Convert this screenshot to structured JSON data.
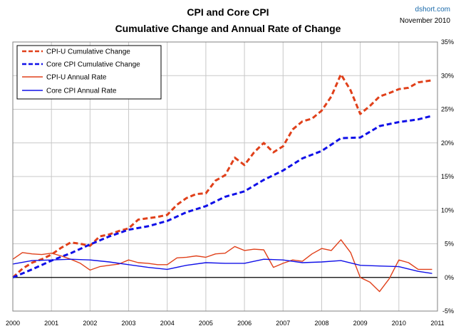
{
  "header": {
    "title_line1": "CPI and Core CPI",
    "title_line2": "Cumulative Change and Annual Rate of Change",
    "source": "dshort.com",
    "date": "November 2010"
  },
  "colors": {
    "cpi_u": "#e0401a",
    "core_cpi": "#1010e8",
    "grid": "#c8c8c8",
    "zero_line": "#000000"
  },
  "chart_data": {
    "type": "line",
    "title": "CPI and Core CPI — Cumulative Change and Annual Rate of Change",
    "x_ticks": [
      "2000",
      "2001",
      "2002",
      "2003",
      "2004",
      "2005",
      "2006",
      "2007",
      "2008",
      "2009",
      "2010",
      "2011"
    ],
    "y_ticks": [
      "35%",
      "30%",
      "25%",
      "20%",
      "15%",
      "10%",
      "5%",
      "0%",
      "-5%"
    ],
    "xlim": [
      2000,
      2011
    ],
    "ylim": [
      -5,
      35
    ],
    "y_axis_side": "right",
    "grid": true,
    "legend_position": "top-left",
    "series": [
      {
        "name": "CPI-U Cumulative Change",
        "style": "dashed",
        "color": "#e0401a",
        "points": [
          [
            2000.0,
            0.0
          ],
          [
            2000.25,
            1.3
          ],
          [
            2000.5,
            2.2
          ],
          [
            2000.75,
            2.7
          ],
          [
            2001.0,
            3.4
          ],
          [
            2001.25,
            4.4
          ],
          [
            2001.5,
            5.2
          ],
          [
            2001.75,
            5.0
          ],
          [
            2002.0,
            4.7
          ],
          [
            2002.25,
            6.1
          ],
          [
            2002.5,
            6.4
          ],
          [
            2002.75,
            6.9
          ],
          [
            2003.0,
            7.3
          ],
          [
            2003.25,
            8.6
          ],
          [
            2003.5,
            8.8
          ],
          [
            2003.75,
            9.0
          ],
          [
            2004.0,
            9.3
          ],
          [
            2004.25,
            10.8
          ],
          [
            2004.5,
            11.8
          ],
          [
            2004.75,
            12.4
          ],
          [
            2005.0,
            12.5
          ],
          [
            2005.25,
            14.4
          ],
          [
            2005.5,
            15.2
          ],
          [
            2005.75,
            17.8
          ],
          [
            2006.0,
            16.7
          ],
          [
            2006.25,
            18.6
          ],
          [
            2006.5,
            20.0
          ],
          [
            2006.75,
            18.6
          ],
          [
            2007.0,
            19.5
          ],
          [
            2007.25,
            22.0
          ],
          [
            2007.5,
            23.2
          ],
          [
            2007.75,
            23.6
          ],
          [
            2008.0,
            24.8
          ],
          [
            2008.25,
            26.9
          ],
          [
            2008.5,
            30.2
          ],
          [
            2008.75,
            27.8
          ],
          [
            2009.0,
            24.3
          ],
          [
            2009.25,
            25.5
          ],
          [
            2009.5,
            26.9
          ],
          [
            2009.75,
            27.4
          ],
          [
            2010.0,
            28.0
          ],
          [
            2010.25,
            28.2
          ],
          [
            2010.5,
            29.0
          ],
          [
            2010.85,
            29.3
          ]
        ]
      },
      {
        "name": "Core CPI Cumulative Change",
        "style": "dashed",
        "color": "#1010e8",
        "points": [
          [
            2000.0,
            0.0
          ],
          [
            2000.5,
            1.2
          ],
          [
            2001.0,
            2.5
          ],
          [
            2001.5,
            3.6
          ],
          [
            2002.0,
            4.9
          ],
          [
            2002.5,
            6.1
          ],
          [
            2003.0,
            7.1
          ],
          [
            2003.5,
            7.6
          ],
          [
            2004.0,
            8.4
          ],
          [
            2004.5,
            9.7
          ],
          [
            2005.0,
            10.6
          ],
          [
            2005.5,
            12.0
          ],
          [
            2006.0,
            12.8
          ],
          [
            2006.5,
            14.5
          ],
          [
            2007.0,
            15.9
          ],
          [
            2007.5,
            17.7
          ],
          [
            2008.0,
            18.8
          ],
          [
            2008.5,
            20.7
          ],
          [
            2009.0,
            20.8
          ],
          [
            2009.5,
            22.5
          ],
          [
            2010.0,
            23.1
          ],
          [
            2010.5,
            23.5
          ],
          [
            2010.85,
            24.0
          ]
        ]
      },
      {
        "name": "CPI-U Annual Rate",
        "style": "solid",
        "color": "#e0401a",
        "points": [
          [
            2000.0,
            2.7
          ],
          [
            2000.25,
            3.7
          ],
          [
            2000.5,
            3.5
          ],
          [
            2000.75,
            3.4
          ],
          [
            2001.0,
            3.6
          ],
          [
            2001.25,
            3.2
          ],
          [
            2001.5,
            2.7
          ],
          [
            2001.75,
            2.1
          ],
          [
            2002.0,
            1.1
          ],
          [
            2002.25,
            1.6
          ],
          [
            2002.5,
            1.8
          ],
          [
            2002.75,
            2.0
          ],
          [
            2003.0,
            2.6
          ],
          [
            2003.25,
            2.2
          ],
          [
            2003.5,
            2.1
          ],
          [
            2003.75,
            1.9
          ],
          [
            2004.0,
            1.9
          ],
          [
            2004.25,
            2.9
          ],
          [
            2004.5,
            3.0
          ],
          [
            2004.75,
            3.2
          ],
          [
            2005.0,
            3.0
          ],
          [
            2005.25,
            3.5
          ],
          [
            2005.5,
            3.6
          ],
          [
            2005.75,
            4.6
          ],
          [
            2006.0,
            4.0
          ],
          [
            2006.25,
            4.2
          ],
          [
            2006.5,
            4.1
          ],
          [
            2006.75,
            1.5
          ],
          [
            2007.0,
            2.1
          ],
          [
            2007.25,
            2.6
          ],
          [
            2007.5,
            2.4
          ],
          [
            2007.75,
            3.5
          ],
          [
            2008.0,
            4.3
          ],
          [
            2008.25,
            4.0
          ],
          [
            2008.5,
            5.6
          ],
          [
            2008.75,
            3.7
          ],
          [
            2009.0,
            0.0
          ],
          [
            2009.25,
            -0.7
          ],
          [
            2009.5,
            -2.1
          ],
          [
            2009.75,
            -0.2
          ],
          [
            2010.0,
            2.6
          ],
          [
            2010.25,
            2.2
          ],
          [
            2010.5,
            1.2
          ],
          [
            2010.85,
            1.2
          ]
        ]
      },
      {
        "name": "Core CPI Annual Rate",
        "style": "solid",
        "color": "#1010e8",
        "points": [
          [
            2000.0,
            2.0
          ],
          [
            2000.5,
            2.5
          ],
          [
            2001.0,
            2.6
          ],
          [
            2001.5,
            2.7
          ],
          [
            2002.0,
            2.6
          ],
          [
            2002.5,
            2.3
          ],
          [
            2003.0,
            1.9
          ],
          [
            2003.5,
            1.5
          ],
          [
            2004.0,
            1.2
          ],
          [
            2004.5,
            1.8
          ],
          [
            2005.0,
            2.2
          ],
          [
            2005.5,
            2.1
          ],
          [
            2006.0,
            2.1
          ],
          [
            2006.5,
            2.7
          ],
          [
            2007.0,
            2.6
          ],
          [
            2007.5,
            2.2
          ],
          [
            2008.0,
            2.3
          ],
          [
            2008.5,
            2.5
          ],
          [
            2009.0,
            1.8
          ],
          [
            2009.5,
            1.7
          ],
          [
            2010.0,
            1.6
          ],
          [
            2010.5,
            0.9
          ],
          [
            2010.85,
            0.6
          ]
        ]
      }
    ]
  }
}
